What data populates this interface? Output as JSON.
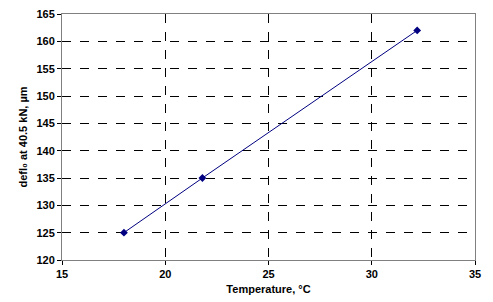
{
  "chart_data": {
    "type": "line",
    "x_label": "Temperature, °C",
    "y_label": "defl₀ at 40.5 kN, µm",
    "x": [
      18,
      21.8,
      32.2
    ],
    "values": [
      125,
      135,
      162
    ],
    "color": "#000080",
    "marker": "diamond",
    "line_style": "solid",
    "xlim": [
      15,
      35
    ],
    "xticks": [
      15,
      20,
      25,
      30,
      35
    ],
    "ylim": [
      120,
      165
    ],
    "yticks": [
      120,
      125,
      130,
      135,
      140,
      145,
      150,
      155,
      160,
      165
    ],
    "grid": true
  }
}
